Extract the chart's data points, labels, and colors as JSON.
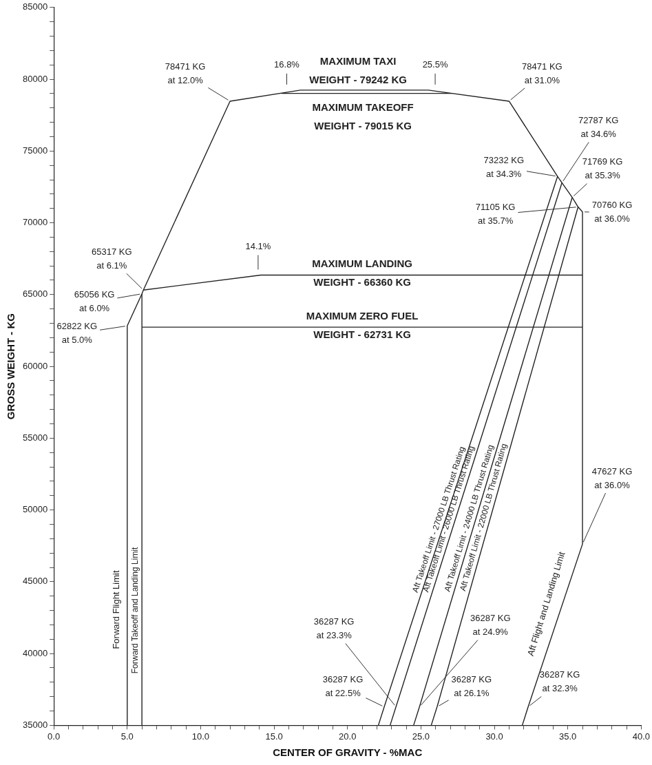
{
  "chart_data": {
    "type": "line",
    "xlabel": "CENTER OF GRAVITY - %MAC",
    "ylabel": "GROSS WEIGHT - KG",
    "xlim": [
      0,
      40
    ],
    "ylim": [
      35000,
      85000
    ],
    "xticks": [
      {
        "value": 0,
        "label": "0.0"
      },
      {
        "value": 1,
        "label": null
      },
      {
        "value": 2,
        "label": null
      },
      {
        "value": 3,
        "label": null
      },
      {
        "value": 4,
        "label": null
      },
      {
        "value": 5,
        "label": "5.0"
      },
      {
        "value": 6,
        "label": null
      },
      {
        "value": 7,
        "label": null
      },
      {
        "value": 8,
        "label": null
      },
      {
        "value": 9,
        "label": null
      },
      {
        "value": 10,
        "label": "10.0"
      },
      {
        "value": 11,
        "label": null
      },
      {
        "value": 12,
        "label": null
      },
      {
        "value": 13,
        "label": null
      },
      {
        "value": 14,
        "label": null
      },
      {
        "value": 15,
        "label": "15.0"
      },
      {
        "value": 16,
        "label": null
      },
      {
        "value": 17,
        "label": null
      },
      {
        "value": 18,
        "label": null
      },
      {
        "value": 19,
        "label": null
      },
      {
        "value": 20,
        "label": "20.0"
      },
      {
        "value": 21,
        "label": null
      },
      {
        "value": 22,
        "label": null
      },
      {
        "value": 23,
        "label": null
      },
      {
        "value": 24,
        "label": null
      },
      {
        "value": 25,
        "label": "25.0"
      },
      {
        "value": 26,
        "label": null
      },
      {
        "value": 27,
        "label": null
      },
      {
        "value": 28,
        "label": null
      },
      {
        "value": 29,
        "label": null
      },
      {
        "value": 30,
        "label": "30.0"
      },
      {
        "value": 31,
        "label": null
      },
      {
        "value": 32,
        "label": null
      },
      {
        "value": 33,
        "label": null
      },
      {
        "value": 34,
        "label": null
      },
      {
        "value": 35,
        "label": "35.0"
      },
      {
        "value": 36,
        "label": null
      },
      {
        "value": 37,
        "label": null
      },
      {
        "value": 38,
        "label": null
      },
      {
        "value": 39,
        "label": null
      },
      {
        "value": 40,
        "label": "40.0"
      }
    ],
    "yticks": [
      35000,
      {
        "value": 36000,
        "label": null
      },
      {
        "value": 37000,
        "label": null
      },
      {
        "value": 38000,
        "label": null
      },
      {
        "value": 39000,
        "label": null
      },
      40000,
      {
        "value": 41000,
        "label": null
      },
      {
        "value": 42000,
        "label": null
      },
      {
        "value": 43000,
        "label": null
      },
      {
        "value": 44000,
        "label": null
      },
      45000,
      {
        "value": 46000,
        "label": null
      },
      {
        "value": 47000,
        "label": null
      },
      {
        "value": 48000,
        "label": null
      },
      {
        "value": 49000,
        "label": null
      },
      50000,
      {
        "value": 51000,
        "label": null
      },
      {
        "value": 52000,
        "label": null
      },
      {
        "value": 53000,
        "label": null
      },
      {
        "value": 54000,
        "label": null
      },
      55000,
      {
        "value": 56000,
        "label": null
      },
      {
        "value": 57000,
        "label": null
      },
      {
        "value": 58000,
        "label": null
      },
      {
        "value": 59000,
        "label": null
      },
      60000,
      {
        "value": 61000,
        "label": null
      },
      {
        "value": 62000,
        "label": null
      },
      {
        "value": 63000,
        "label": null
      },
      {
        "value": 64000,
        "label": null
      },
      65000,
      {
        "value": 66000,
        "label": null
      },
      {
        "value": 67000,
        "label": null
      },
      {
        "value": 68000,
        "label": null
      },
      {
        "value": 69000,
        "label": null
      },
      70000,
      {
        "value": 71000,
        "label": null
      },
      {
        "value": 72000,
        "label": null
      },
      {
        "value": 73000,
        "label": null
      },
      {
        "value": 74000,
        "label": null
      },
      75000,
      {
        "value": 76000,
        "label": null
      },
      {
        "value": 77000,
        "label": null
      },
      {
        "value": 78000,
        "label": null
      },
      {
        "value": 79000,
        "label": null
      },
      80000,
      {
        "value": 81000,
        "label": null
      },
      {
        "value": 82000,
        "label": null
      },
      {
        "value": 83000,
        "label": null
      },
      {
        "value": 84000,
        "label": null
      },
      85000
    ],
    "grid": false,
    "legend": false,
    "marker": "none",
    "line_style": "solid",
    "series": [
      {
        "name": "Forward Takeoff and Landing Limit",
        "color": "#222222",
        "x": [
          6.0,
          6.0
        ],
        "values": [
          35000,
          65056
        ]
      },
      {
        "color": "#222222",
        "x": [
          5.0,
          5.0,
          6.0,
          6.1,
          12.0,
          16.8,
          25.5,
          31.0,
          34.3,
          34.6,
          35.3,
          35.7,
          36.0,
          36.0,
          32.3,
          31.9
        ],
        "values": [
          35000,
          62822,
          65056,
          65317,
          78471,
          79242,
          79242,
          78471,
          73232,
          72787,
          71769,
          71105,
          70760,
          47627,
          36287,
          35000
        ]
      },
      {
        "color": "#222222",
        "x": [
          15.5,
          27.1
        ],
        "values": [
          79015,
          79015
        ]
      },
      {
        "color": "#222222",
        "x": [
          6.1,
          14.1,
          36.0
        ],
        "values": [
          65317,
          66360,
          66360
        ]
      },
      {
        "color": "#222222",
        "x": [
          6.0,
          36.0
        ],
        "values": [
          62731,
          62731
        ]
      },
      {
        "name": "Aft Takeoff Limit - 27000 LB Thrust Rating",
        "color": "#222222",
        "x": [
          22.1,
          22.5,
          34.3
        ],
        "values": [
          35000,
          36287,
          73232
        ]
      },
      {
        "name": "Aft Takeoff Limit - 26000 LB Thrust Rating",
        "color": "#222222",
        "x": [
          22.9,
          23.3,
          34.6
        ],
        "values": [
          35000,
          36287,
          72787
        ]
      },
      {
        "name": "Aft Takeoff Limit - 24000 LB Thrust Rating",
        "color": "#222222",
        "x": [
          24.5,
          24.9,
          35.3
        ],
        "values": [
          35000,
          36287,
          71769
        ]
      },
      {
        "name": "Aft Takeoff Limit - 22000 LB Thrust Rating",
        "color": "#222222",
        "x": [
          25.7,
          26.1,
          35.7
        ],
        "values": [
          35000,
          36287,
          71105
        ]
      }
    ],
    "annotations": [
      {
        "text": "78471 KG\nat 12.0%",
        "x": 12.0,
        "y": 78471
      },
      {
        "text": "16.8%",
        "x": 16.8,
        "y": 79242
      },
      {
        "text": "25.5%",
        "x": 25.5,
        "y": 79242
      },
      {
        "text": "78471 KG\nat 31.0%",
        "x": 31.0,
        "y": 78471
      },
      {
        "text": "72787 KG\nat 34.6%",
        "x": 34.6,
        "y": 72787
      },
      {
        "text": "73232 KG\nat 34.3%",
        "x": 34.3,
        "y": 73232
      },
      {
        "text": "71769 KG\nat 35.3%",
        "x": 35.3,
        "y": 71769
      },
      {
        "text": "70760 KG\nat 36.0%",
        "x": 36.0,
        "y": 70760
      },
      {
        "text": "71105 KG\nat 35.7%",
        "x": 35.7,
        "y": 71105
      },
      {
        "text": "65317 KG\nat 6.1%",
        "x": 6.1,
        "y": 65317
      },
      {
        "text": "14.1%",
        "x": 14.1,
        "y": 66360
      },
      {
        "text": "65056 KG\nat 6.0%",
        "x": 6.0,
        "y": 65056
      },
      {
        "text": "62822 KG\nat 5.0%",
        "x": 5.0,
        "y": 62822
      },
      {
        "text": "MAXIMUM TAXI\nWEIGHT - 79242 KG",
        "x": 21.0,
        "y": 79242
      },
      {
        "text": "MAXIMUM TAKEOFF\nWEIGHT - 79015 KG",
        "x": 21.0,
        "y": 79015
      },
      {
        "text": "MAXIMUM LANDING\nWEIGHT - 66360 KG",
        "x": 21.0,
        "y": 66360
      },
      {
        "text": "MAXIMUM ZERO FUEL\nWEIGHT - 62731 KG",
        "x": 21.0,
        "y": 62731
      },
      {
        "text": "36287 KG\nat 23.3%",
        "x": 23.3,
        "y": 36287
      },
      {
        "text": "36287 KG\nat 22.5%",
        "x": 22.5,
        "y": 36287
      },
      {
        "text": "36287 KG\nat 24.9%",
        "x": 24.9,
        "y": 36287
      },
      {
        "text": "36287 KG\nat 26.1%",
        "x": 26.1,
        "y": 36287
      },
      {
        "text": "47627 KG\nat 36.0%",
        "x": 36.0,
        "y": 47627
      },
      {
        "text": "36287 KG\nat 32.3%",
        "x": 32.3,
        "y": 36287
      },
      "Forward Flight Limit",
      "Aft Flight and Landing Limit"
    ]
  }
}
